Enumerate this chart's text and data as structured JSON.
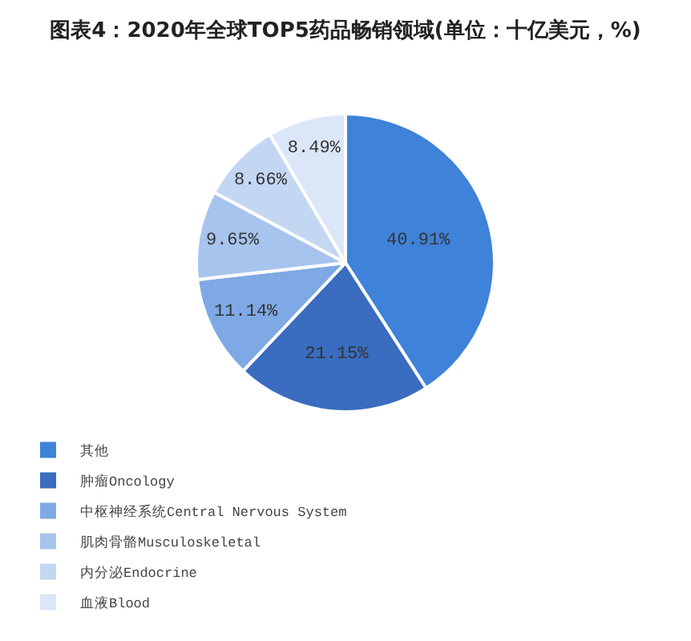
{
  "chart_data": {
    "type": "pie",
    "title": "图表4：2020年全球TOP5药品畅销领域(单位：十亿美元，%)",
    "categories": [
      "其他",
      "肿瘤Oncology",
      "中枢神经系统Central Nervous System",
      "肌肉骨骼Musculoskeletal",
      "内分泌Endocrine",
      "血液Blood"
    ],
    "values": [
      40.91,
      21.15,
      11.14,
      9.65,
      8.66,
      8.49
    ],
    "value_labels": [
      "40.91%",
      "21.15%",
      "11.14%",
      "9.65%",
      "8.66%",
      "8.49%"
    ],
    "colors": [
      "#3f82d9",
      "#3a6cbf",
      "#7ea9e4",
      "#a7c4ee",
      "#c3d7f3",
      "#dbe7f8"
    ],
    "legend": "bottom"
  }
}
